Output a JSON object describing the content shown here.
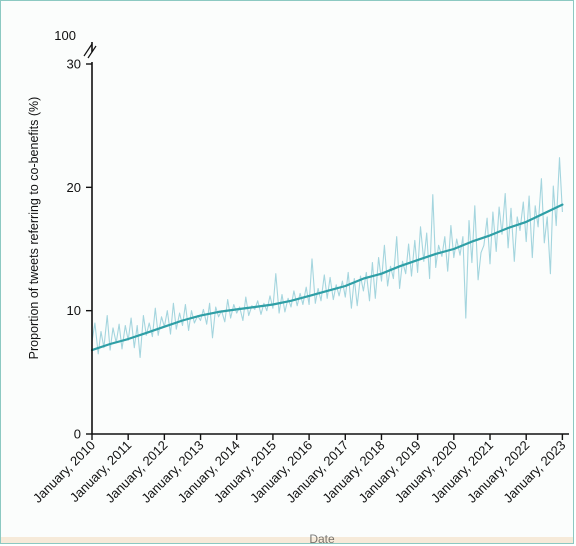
{
  "chart_data": {
    "type": "line",
    "title": "",
    "ylabel": "Proportion of tweets referring to co-benefits (%)",
    "xlabel": "Date",
    "ylim": [
      0,
      30
    ],
    "y_break_label": "100",
    "y_ticks": [
      0,
      10,
      20,
      30
    ],
    "x_tick_labels": [
      "January, 2010",
      "January, 2011",
      "January, 2012",
      "January, 2013",
      "January, 2014",
      "January, 2015",
      "January, 2016",
      "January, 2017",
      "January, 2018",
      "January, 2019",
      "January, 2020",
      "January, 2021",
      "January, 2022",
      "January, 2023"
    ],
    "x_range_years": [
      2010,
      2023.1
    ],
    "grid": false,
    "legend": "none",
    "colors": {
      "trend": "#2f9fa6",
      "raw": "#9fd3dc",
      "axis": "#111111"
    },
    "series": [
      {
        "kind": "trend",
        "x": [
          2010.0,
          2010.5,
          2011.0,
          2011.5,
          2012.0,
          2012.5,
          2013.0,
          2013.5,
          2014.0,
          2014.5,
          2015.0,
          2015.5,
          2016.0,
          2016.5,
          2017.0,
          2017.5,
          2018.0,
          2018.5,
          2019.0,
          2019.5,
          2020.0,
          2020.5,
          2021.0,
          2021.5,
          2022.0,
          2022.5,
          2023.0
        ],
        "values": [
          6.8,
          7.3,
          7.7,
          8.2,
          8.7,
          9.2,
          9.6,
          9.9,
          10.1,
          10.3,
          10.5,
          10.8,
          11.2,
          11.6,
          12.0,
          12.6,
          13.0,
          13.6,
          14.1,
          14.6,
          15.0,
          15.6,
          16.1,
          16.7,
          17.2,
          17.9,
          18.6
        ]
      },
      {
        "kind": "raw",
        "x": [
          2010.0,
          2010.08,
          2010.17,
          2010.25,
          2010.33,
          2010.42,
          2010.5,
          2010.58,
          2010.67,
          2010.75,
          2010.83,
          2010.92,
          2011.0,
          2011.08,
          2011.17,
          2011.25,
          2011.33,
          2011.42,
          2011.5,
          2011.58,
          2011.67,
          2011.75,
          2011.83,
          2011.92,
          2012.0,
          2012.08,
          2012.17,
          2012.25,
          2012.33,
          2012.42,
          2012.5,
          2012.58,
          2012.67,
          2012.75,
          2012.83,
          2012.92,
          2013.0,
          2013.08,
          2013.17,
          2013.25,
          2013.33,
          2013.42,
          2013.5,
          2013.58,
          2013.67,
          2013.75,
          2013.83,
          2013.92,
          2014.0,
          2014.08,
          2014.17,
          2014.25,
          2014.33,
          2014.42,
          2014.5,
          2014.58,
          2014.67,
          2014.75,
          2014.83,
          2014.92,
          2015.0,
          2015.08,
          2015.17,
          2015.25,
          2015.33,
          2015.42,
          2015.5,
          2015.58,
          2015.67,
          2015.75,
          2015.83,
          2015.92,
          2016.0,
          2016.08,
          2016.17,
          2016.25,
          2016.33,
          2016.42,
          2016.5,
          2016.58,
          2016.67,
          2016.75,
          2016.83,
          2016.92,
          2017.0,
          2017.08,
          2017.17,
          2017.25,
          2017.33,
          2017.42,
          2017.5,
          2017.58,
          2017.67,
          2017.75,
          2017.83,
          2017.92,
          2018.0,
          2018.08,
          2018.17,
          2018.25,
          2018.33,
          2018.42,
          2018.5,
          2018.58,
          2018.67,
          2018.75,
          2018.83,
          2018.92,
          2019.0,
          2019.08,
          2019.17,
          2019.25,
          2019.33,
          2019.42,
          2019.5,
          2019.58,
          2019.67,
          2019.75,
          2019.83,
          2019.92,
          2020.0,
          2020.08,
          2020.17,
          2020.25,
          2020.33,
          2020.42,
          2020.5,
          2020.58,
          2020.67,
          2020.75,
          2020.83,
          2020.92,
          2021.0,
          2021.08,
          2021.17,
          2021.25,
          2021.33,
          2021.42,
          2021.5,
          2021.58,
          2021.67,
          2021.75,
          2021.83,
          2021.92,
          2022.0,
          2022.08,
          2022.17,
          2022.25,
          2022.33,
          2022.42,
          2022.5,
          2022.58,
          2022.67,
          2022.75,
          2022.83,
          2022.92,
          2023.0
        ],
        "values": [
          7.5,
          9.0,
          6.5,
          8.3,
          7.0,
          9.6,
          6.8,
          8.6,
          7.4,
          8.9,
          6.9,
          8.8,
          7.6,
          9.4,
          7.0,
          8.8,
          6.2,
          9.6,
          8.0,
          9.0,
          7.9,
          10.2,
          8.0,
          9.5,
          8.7,
          10.0,
          8.1,
          10.6,
          8.5,
          9.8,
          8.8,
          10.5,
          8.4,
          10.0,
          9.0,
          9.6,
          9.2,
          10.1,
          8.9,
          10.6,
          7.8,
          10.3,
          9.5,
          10.0,
          9.1,
          10.9,
          9.4,
          10.5,
          9.8,
          10.3,
          9.2,
          11.1,
          9.6,
          10.4,
          10.1,
          10.8,
          9.7,
          10.6,
          10.0,
          11.2,
          10.2,
          13.0,
          9.8,
          11.3,
          9.9,
          11.0,
          10.3,
          11.6,
          10.4,
          11.4,
          10.5,
          11.9,
          10.5,
          14.2,
          10.6,
          11.8,
          10.8,
          12.9,
          11.0,
          12.7,
          10.9,
          12.1,
          11.2,
          12.4,
          11.1,
          13.1,
          10.2,
          12.6,
          10.4,
          12.8,
          11.6,
          13.1,
          10.8,
          13.9,
          11.0,
          14.3,
          12.4,
          15.3,
          12.0,
          13.6,
          12.6,
          16.0,
          11.8,
          14.0,
          13.0,
          15.4,
          12.8,
          15.7,
          13.1,
          16.8,
          14.0,
          16.3,
          12.6,
          19.4,
          13.5,
          15.3,
          14.4,
          16.0,
          13.2,
          16.9,
          14.3,
          15.8,
          14.5,
          16.0,
          9.4,
          17.3,
          13.9,
          18.5,
          12.5,
          14.7,
          15.3,
          17.5,
          13.8,
          18.0,
          14.8,
          18.4,
          16.2,
          19.5,
          15.1,
          18.3,
          14.0,
          17.6,
          16.5,
          18.8,
          15.6,
          19.3,
          14.3,
          18.5,
          16.8,
          20.7,
          15.5,
          17.6,
          13.0,
          20.1,
          16.9,
          22.4,
          18.0
        ]
      }
    ]
  }
}
